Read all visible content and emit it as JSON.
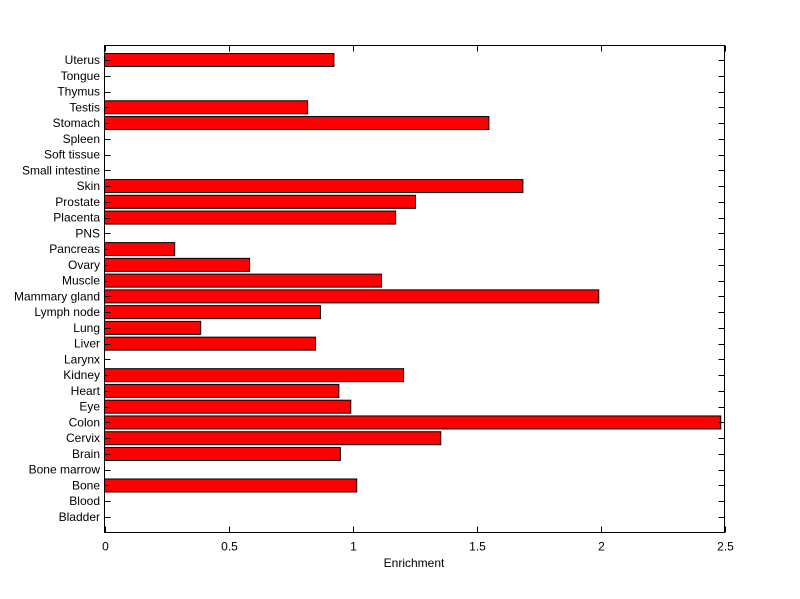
{
  "chart_data": {
    "type": "bar",
    "orientation": "horizontal",
    "title": "",
    "xlabel": "Enrichment",
    "ylabel": "",
    "xlim": [
      0,
      2.5
    ],
    "xticks": [
      "0",
      "0.5",
      "1",
      "1.5",
      "2",
      "2.5"
    ],
    "xtick_values": [
      0,
      0.5,
      1,
      1.5,
      2,
      2.5
    ],
    "grid": false,
    "bar_color": "#ff0000",
    "categories": [
      "Bladder",
      "Blood",
      "Bone",
      "Bone marrow",
      "Brain",
      "Cervix",
      "Colon",
      "Eye",
      "Heart",
      "Kidney",
      "Larynx",
      "Liver",
      "Lung",
      "Lymph node",
      "Mammary gland",
      "Muscle",
      "Ovary",
      "Pancreas",
      "PNS",
      "Placenta",
      "Prostate",
      "Skin",
      "Small intestine",
      "Soft tissue",
      "Spleen",
      "Stomach",
      "Testis",
      "Thymus",
      "Tongue",
      "Uterus"
    ],
    "values": [
      0,
      0,
      1.017,
      0,
      0.951,
      1.356,
      2.485,
      0.993,
      0.945,
      1.206,
      0,
      0.851,
      0.388,
      0.871,
      1.993,
      1.117,
      0.585,
      0.283,
      0,
      1.174,
      1.254,
      1.687,
      0,
      0,
      0,
      1.55,
      0.819,
      0,
      0,
      0.925
    ]
  }
}
